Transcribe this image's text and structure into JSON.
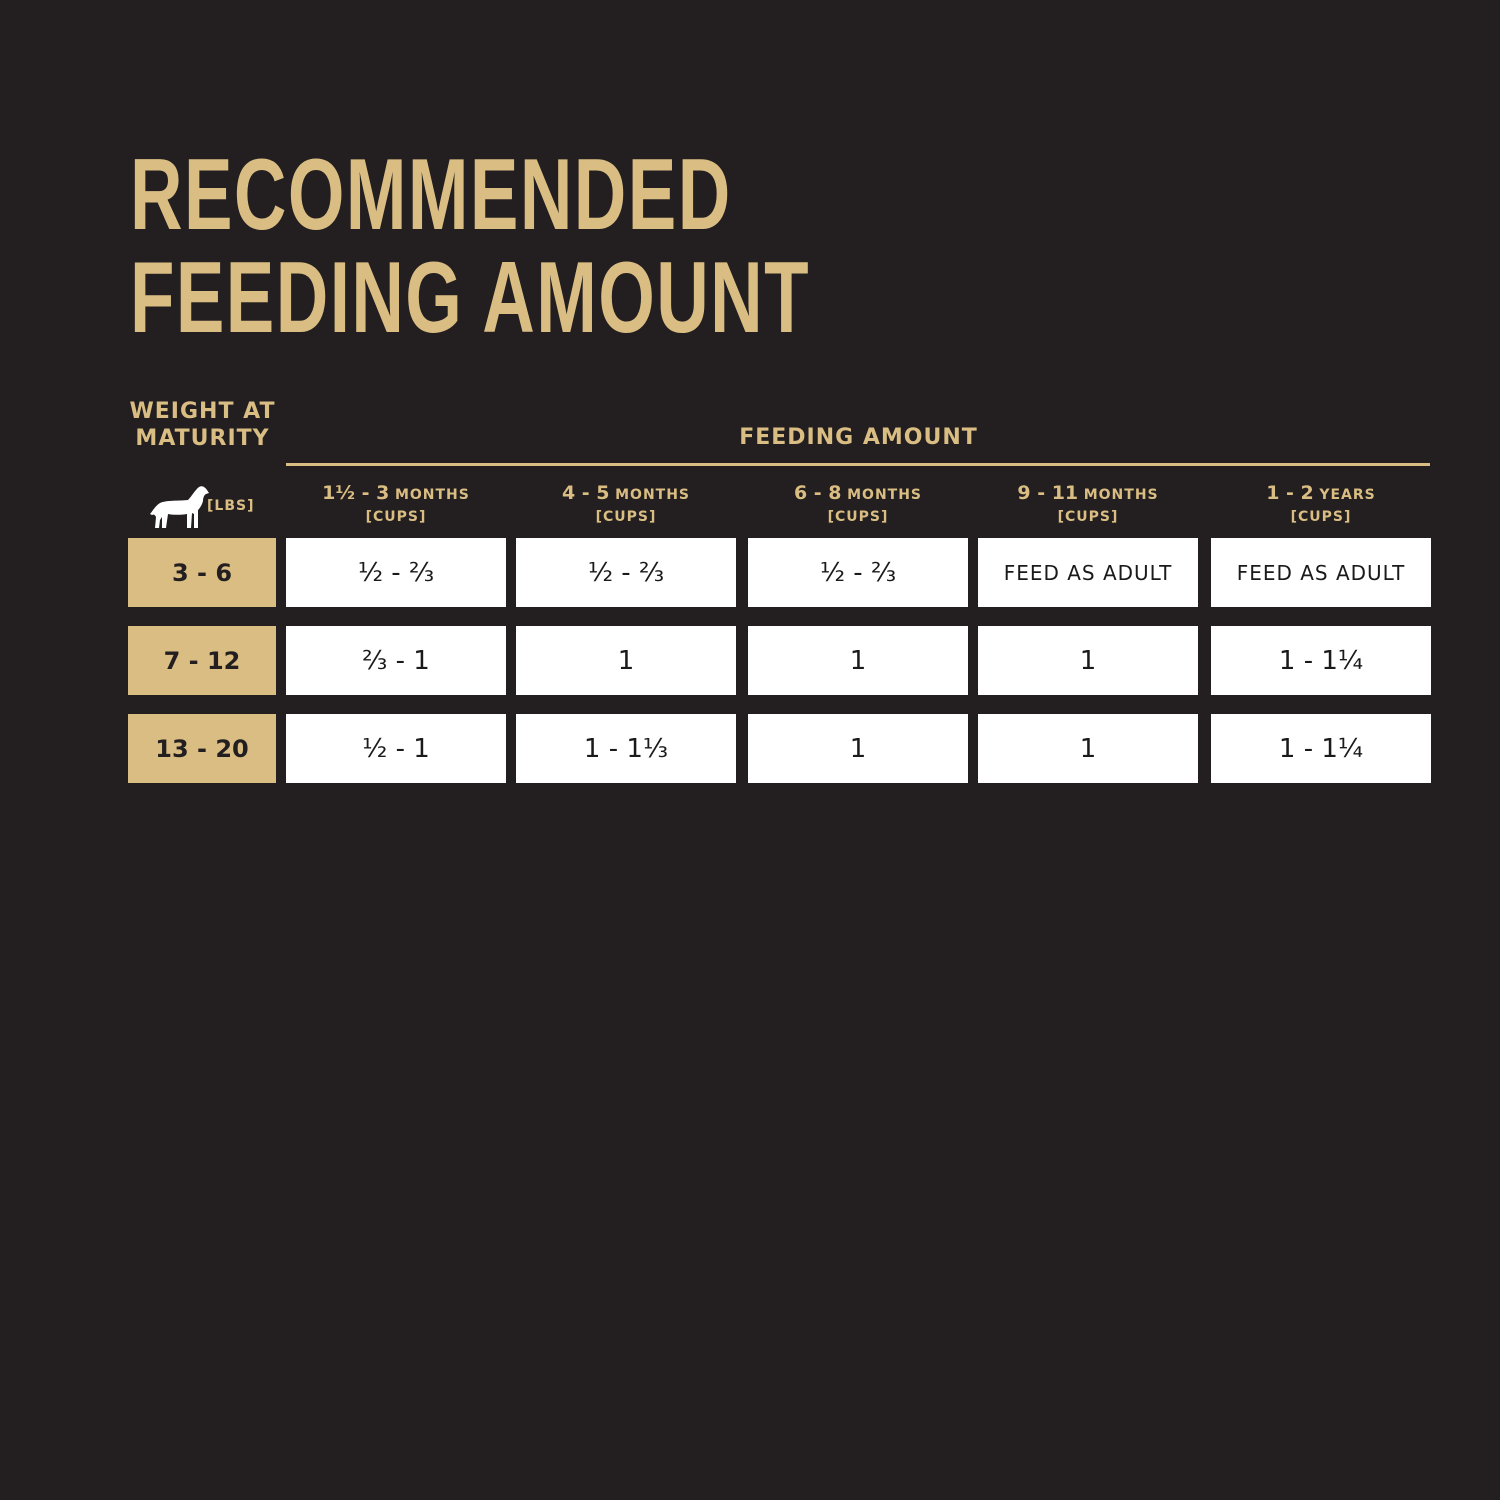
{
  "title": {
    "line1": "RECOMMENDED",
    "line2": "FEEDING AMOUNT"
  },
  "colors": {
    "background": "#231f20",
    "accent_gold": "#d9bd83",
    "cell_white": "#ffffff"
  },
  "table": {
    "weight_header": {
      "line1": "WEIGHT AT",
      "line2": "MATURITY",
      "unit": "[LBS]",
      "icon": "dog-icon"
    },
    "feeding_header": "FEEDING AMOUNT",
    "columns": [
      {
        "num": "1½ - 3",
        "unit": "MONTHS",
        "sub": "[CUPS]"
      },
      {
        "num": "4 - 5",
        "unit": "MONTHS",
        "sub": "[CUPS]"
      },
      {
        "num": "6 - 8",
        "unit": "MONTHS",
        "sub": "[CUPS]"
      },
      {
        "num": "9 - 11",
        "unit": "MONTHS",
        "sub": "[CUPS]"
      },
      {
        "num": "1 - 2",
        "unit": "YEARS",
        "sub": "[CUPS]"
      }
    ],
    "rows": [
      {
        "weight": "3 - 6",
        "values": [
          "½ - ⅔",
          "½ - ⅔",
          "½ - ⅔",
          "FEED AS ADULT",
          "FEED AS ADULT"
        ]
      },
      {
        "weight": "7 - 12",
        "values": [
          "⅔ - 1",
          "1",
          "1",
          "1",
          "1 - 1¼"
        ]
      },
      {
        "weight": "13 - 20",
        "values": [
          "½ - 1",
          "1 - 1⅓",
          "1",
          "1",
          "1 - 1¼"
        ]
      }
    ]
  }
}
